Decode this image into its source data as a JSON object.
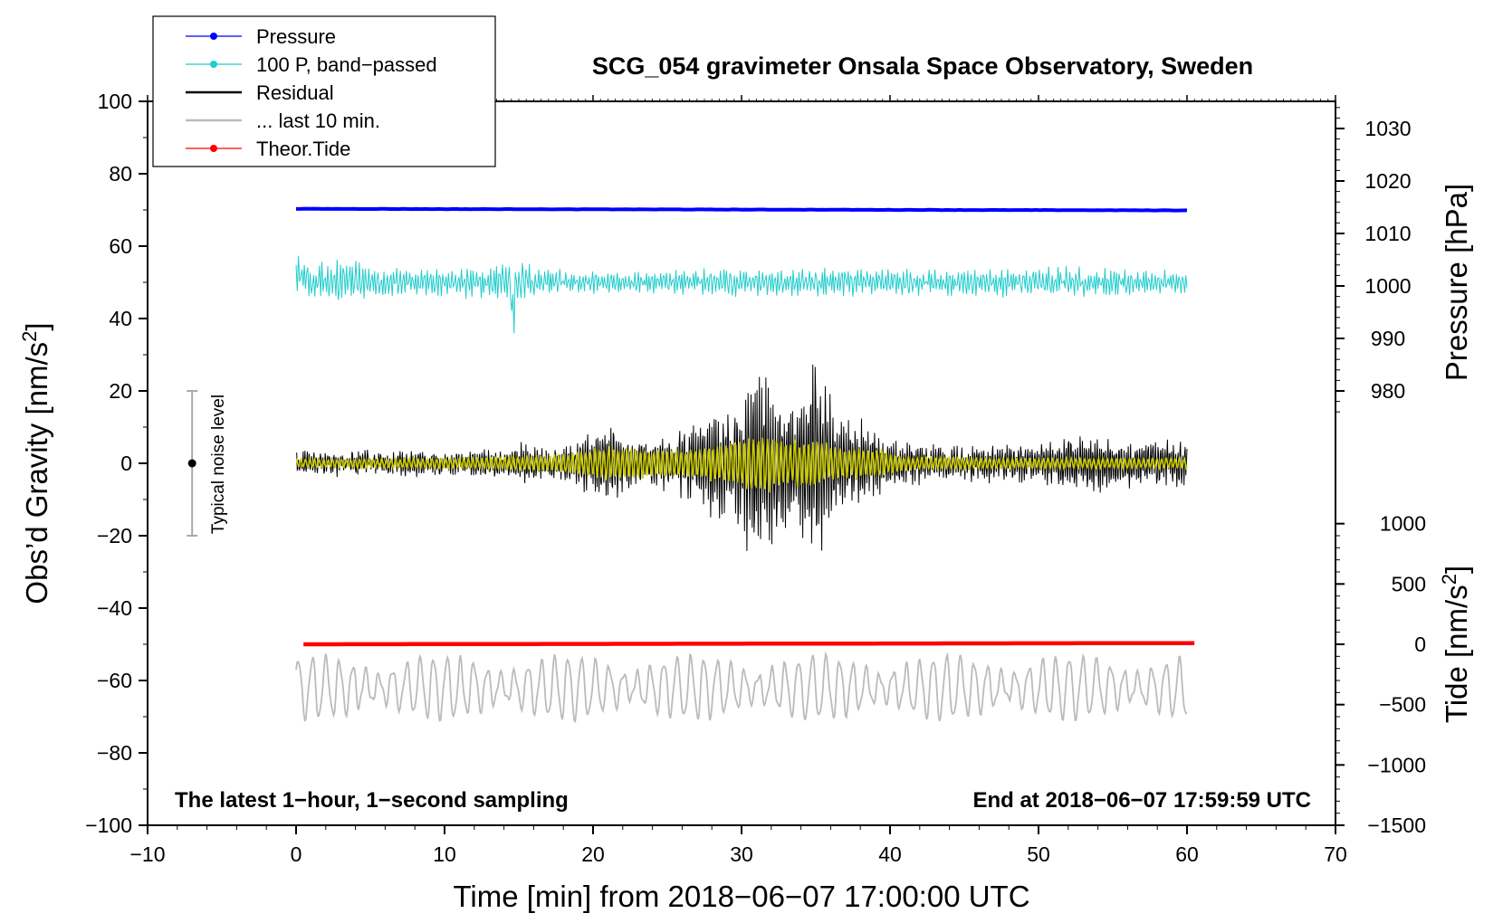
{
  "chart_data": {
    "type": "line",
    "title": "SCG_054 gravimeter Onsala Space Observatory, Sweden",
    "xlabel": "Time [min] from 2018−06−07 17:00:00 UTC",
    "ylabel_left": "Obs’d Gravity [nm/s",
    "ylabel_left_sup": "2",
    "ylabel_left_end": "]",
    "ylabel_pressure": "Pressure [hPa]",
    "ylabel_tide": "Tide [nm/s",
    "ylabel_tide_sup": "2",
    "ylabel_tide_end": "]",
    "xlim": [
      -10,
      70
    ],
    "ylim": [
      -100,
      100
    ],
    "x_ticks": [
      "−10",
      "0",
      "10",
      "20",
      "30",
      "40",
      "50",
      "60",
      "70"
    ],
    "x_tick_values": [
      -10,
      0,
      10,
      20,
      30,
      40,
      50,
      60,
      70
    ],
    "y_ticks": [
      "100",
      "80",
      "60",
      "40",
      "20",
      "0",
      "−20",
      "−40",
      "−60",
      "−80",
      "−100"
    ],
    "y_tick_values": [
      100,
      80,
      60,
      40,
      20,
      0,
      -20,
      -40,
      -60,
      -80,
      -100
    ],
    "pressure_ticks": [
      "1030",
      "1020",
      "1010",
      "1000",
      "990",
      "980"
    ],
    "pressure_tick_values": [
      1030,
      1020,
      1010,
      1000,
      990,
      980
    ],
    "pressure_axis_map": {
      "hPa": [
        980,
        1030
      ],
      "gravity": [
        20,
        92.5
      ]
    },
    "tide_ticks": [
      "1000",
      "500",
      "0",
      "−500",
      "−1000",
      "−1500"
    ],
    "tide_tick_values": [
      1000,
      500,
      0,
      -500,
      -1000,
      -1500
    ],
    "tide_axis_map": {
      "nm_s2": [
        -1500,
        1000
      ],
      "gravity": [
        -100,
        -16.67
      ]
    },
    "legend": [
      {
        "label": "Pressure",
        "color": "#0000ff",
        "marker": true
      },
      {
        "label": "100 P, band−passed",
        "color": "#22cccc",
        "marker": true
      },
      {
        "label": "Residual",
        "color": "#000000",
        "marker": false
      },
      {
        "label": "... last 10 min.",
        "color": "#bbbbbb",
        "marker": false
      },
      {
        "label": "Theor.Tide",
        "color": "#ff0000",
        "marker": true
      }
    ],
    "annotations": {
      "bottom_left": "The latest 1−hour, 1−second sampling",
      "bottom_right": "End at 2018−06−07 17:59:59 UTC",
      "noise_label": "Typical noise level"
    },
    "noise_bar": {
      "x": -7,
      "center": 0,
      "low": -20,
      "high": 20
    },
    "series": [
      {
        "name": "Pressure",
        "color": "#0000ff",
        "unit": "hPa",
        "x_range": [
          0,
          60
        ],
        "start": 1014.7,
        "end": 1014.4
      },
      {
        "name": "100 P, band−passed",
        "color": "#22cccc",
        "center": 50,
        "x_range": [
          0,
          60
        ],
        "envelope": [
          [
            0,
            5
          ],
          [
            3,
            6
          ],
          [
            8,
            3
          ],
          [
            13,
            4.5
          ],
          [
            14.5,
            8
          ],
          [
            16,
            4
          ],
          [
            22,
            2.5
          ],
          [
            28,
            4
          ],
          [
            40,
            3.5
          ],
          [
            52,
            4
          ],
          [
            60,
            3
          ]
        ]
      },
      {
        "name": "Residual",
        "color": "#000000",
        "center": 0,
        "x_range": [
          0,
          60
        ],
        "min": -31,
        "max": 29,
        "envelope": [
          [
            0,
            3
          ],
          [
            10,
            3
          ],
          [
            18,
            5
          ],
          [
            21,
            10
          ],
          [
            24,
            6
          ],
          [
            27,
            11
          ],
          [
            29.5,
            17
          ],
          [
            30.8,
            26
          ],
          [
            32,
            23
          ],
          [
            33.5,
            16
          ],
          [
            35,
            29
          ],
          [
            36.5,
            14
          ],
          [
            38.5,
            10
          ],
          [
            40,
            6
          ],
          [
            44,
            4.5
          ],
          [
            50,
            5
          ],
          [
            53,
            8
          ],
          [
            56,
            6
          ],
          [
            60,
            7
          ]
        ]
      },
      {
        "name": "Residual (smoothed)",
        "color": "#cccc00",
        "center": 0,
        "x_range": [
          0,
          60
        ],
        "envelope": [
          [
            0,
            1.2
          ],
          [
            10,
            1.5
          ],
          [
            18,
            2.5
          ],
          [
            21,
            5
          ],
          [
            24,
            4
          ],
          [
            27,
            4
          ],
          [
            30,
            7
          ],
          [
            31.5,
            9
          ],
          [
            33,
            6
          ],
          [
            35,
            7
          ],
          [
            36.5,
            4.5
          ],
          [
            39.5,
            4
          ],
          [
            41,
            2
          ],
          [
            50,
            1.5
          ],
          [
            60,
            1.5
          ]
        ]
      },
      {
        "name": "... last 10 min.",
        "color": "#bbbbbb",
        "center": -60,
        "x_range": [
          0,
          60
        ],
        "min": -73,
        "max": -52,
        "amplitude": 7
      },
      {
        "name": "Theor.Tide",
        "color": "#ff0000",
        "unit": "nm/s2",
        "x_range": [
          0.5,
          60.5
        ],
        "start": 0,
        "end": 10
      }
    ]
  }
}
